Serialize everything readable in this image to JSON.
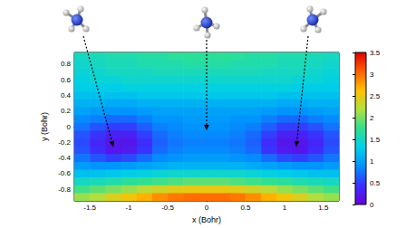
{
  "chart_data": {
    "type": "heatmap",
    "xlabel": "x (Bohr)",
    "ylabel": "y (Bohr)",
    "xlim": [
      -1.7,
      1.7
    ],
    "ylim": [
      -0.95,
      0.95
    ],
    "xticks": [
      -1.5,
      -1,
      -0.5,
      0,
      0.5,
      1,
      1.5
    ],
    "yticks": [
      -0.8,
      -0.6,
      -0.4,
      -0.2,
      0,
      0.2,
      0.4,
      0.6,
      0.8
    ],
    "x": [
      -1.6,
      -1.4,
      -1.2,
      -1.0,
      -0.8,
      -0.6,
      -0.4,
      -0.2,
      0,
      0.2,
      0.4,
      0.6,
      0.8,
      1.0,
      1.2,
      1.4,
      1.6
    ],
    "y": [
      0.9,
      0.8,
      0.7,
      0.6,
      0.5,
      0.4,
      0.3,
      0.2,
      0.1,
      0,
      -0.1,
      -0.2,
      -0.3,
      -0.4,
      -0.5,
      -0.6,
      -0.7,
      -0.8,
      -0.9
    ],
    "z": [
      [
        1.5,
        1.55,
        1.6,
        1.6,
        1.65,
        1.65,
        1.7,
        1.7,
        1.7,
        1.7,
        1.7,
        1.65,
        1.65,
        1.6,
        1.6,
        1.55,
        1.5
      ],
      [
        1.45,
        1.5,
        1.55,
        1.55,
        1.6,
        1.6,
        1.6,
        1.65,
        1.65,
        1.65,
        1.6,
        1.6,
        1.6,
        1.55,
        1.55,
        1.5,
        1.45
      ],
      [
        1.4,
        1.45,
        1.5,
        1.5,
        1.5,
        1.55,
        1.55,
        1.55,
        1.55,
        1.55,
        1.55,
        1.55,
        1.5,
        1.5,
        1.5,
        1.45,
        1.4
      ],
      [
        1.35,
        1.4,
        1.4,
        1.45,
        1.45,
        1.45,
        1.45,
        1.45,
        1.45,
        1.45,
        1.45,
        1.45,
        1.45,
        1.45,
        1.4,
        1.4,
        1.35
      ],
      [
        1.3,
        1.3,
        1.3,
        1.35,
        1.35,
        1.35,
        1.35,
        1.35,
        1.35,
        1.35,
        1.35,
        1.35,
        1.35,
        1.35,
        1.3,
        1.3,
        1.3
      ],
      [
        1.2,
        1.2,
        1.2,
        1.2,
        1.25,
        1.25,
        1.25,
        1.25,
        1.25,
        1.25,
        1.25,
        1.25,
        1.25,
        1.2,
        1.2,
        1.2,
        1.2
      ],
      [
        1.1,
        1.1,
        1.05,
        1.05,
        1.1,
        1.1,
        1.1,
        1.1,
        1.1,
        1.1,
        1.1,
        1.1,
        1.1,
        1.05,
        1.05,
        1.1,
        1.1
      ],
      [
        1.0,
        0.95,
        0.9,
        0.9,
        0.95,
        1.0,
        1.0,
        1.0,
        1.0,
        1.0,
        1.0,
        1.0,
        0.95,
        0.9,
        0.9,
        0.95,
        1.0
      ],
      [
        0.85,
        0.8,
        0.7,
        0.7,
        0.8,
        0.9,
        0.9,
        0.95,
        0.95,
        0.95,
        0.9,
        0.9,
        0.8,
        0.7,
        0.7,
        0.8,
        0.85
      ],
      [
        0.75,
        0.6,
        0.5,
        0.5,
        0.65,
        0.8,
        0.85,
        0.9,
        0.9,
        0.9,
        0.85,
        0.8,
        0.65,
        0.5,
        0.5,
        0.6,
        0.75
      ],
      [
        0.6,
        0.45,
        0.3,
        0.3,
        0.5,
        0.7,
        0.8,
        0.85,
        0.85,
        0.85,
        0.8,
        0.7,
        0.5,
        0.3,
        0.3,
        0.45,
        0.6
      ],
      [
        0.55,
        0.35,
        0.2,
        0.2,
        0.4,
        0.65,
        0.75,
        0.8,
        0.8,
        0.8,
        0.75,
        0.65,
        0.4,
        0.2,
        0.2,
        0.35,
        0.55
      ],
      [
        0.6,
        0.4,
        0.2,
        0.25,
        0.45,
        0.7,
        0.8,
        0.85,
        0.85,
        0.85,
        0.8,
        0.7,
        0.45,
        0.25,
        0.2,
        0.4,
        0.6
      ],
      [
        0.75,
        0.6,
        0.5,
        0.55,
        0.7,
        0.85,
        0.9,
        0.95,
        0.95,
        0.95,
        0.9,
        0.85,
        0.7,
        0.55,
        0.5,
        0.6,
        0.75
      ],
      [
        0.95,
        0.9,
        0.9,
        0.95,
        1.0,
        1.05,
        1.1,
        1.1,
        1.1,
        1.1,
        1.1,
        1.05,
        1.0,
        0.95,
        0.9,
        0.9,
        0.95
      ],
      [
        1.2,
        1.2,
        1.25,
        1.3,
        1.35,
        1.4,
        1.45,
        1.45,
        1.45,
        1.45,
        1.45,
        1.4,
        1.35,
        1.3,
        1.25,
        1.2,
        1.2
      ],
      [
        1.5,
        1.55,
        1.6,
        1.7,
        1.75,
        1.8,
        1.85,
        1.9,
        1.9,
        1.9,
        1.85,
        1.8,
        1.75,
        1.7,
        1.6,
        1.55,
        1.5
      ],
      [
        1.8,
        1.9,
        2.0,
        2.1,
        2.25,
        2.35,
        2.45,
        2.5,
        2.5,
        2.5,
        2.45,
        2.35,
        2.25,
        2.1,
        2.0,
        1.9,
        1.8
      ],
      [
        2.1,
        2.2,
        2.4,
        2.55,
        2.7,
        2.85,
        2.95,
        3.0,
        3.0,
        3.0,
        2.95,
        2.85,
        2.7,
        2.55,
        2.4,
        2.2,
        2.1
      ]
    ],
    "colorbar_range": [
      0,
      3.5
    ],
    "colorbar_ticks": [
      0,
      0.5,
      1,
      1.5,
      2,
      2.5,
      3,
      3.5
    ]
  }
}
